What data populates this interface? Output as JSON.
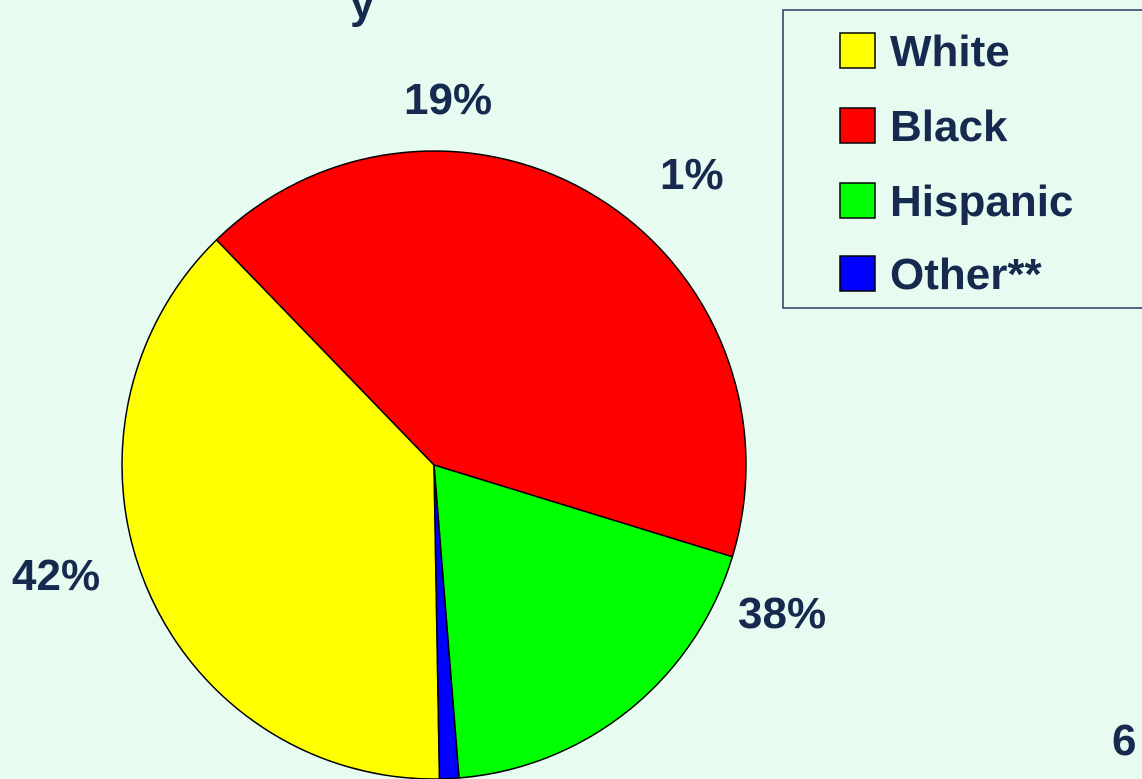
{
  "chart_data": {
    "type": "pie",
    "categories": [
      "White",
      "Black",
      "Hispanic",
      "Other**"
    ],
    "values": [
      38,
      42,
      19,
      1
    ],
    "labels": [
      "38%",
      "42%",
      "19%",
      "1%"
    ],
    "colors": [
      "#ffff00",
      "#ff0000",
      "#00ff00",
      "#0000ff"
    ],
    "legend": {
      "placement": "top-right",
      "entries": [
        "White",
        "Black",
        "Hispanic",
        "Other**"
      ]
    }
  },
  "background_color": "#e8fbf1",
  "text_color": "#16294e",
  "partial_text": {
    "top": "y",
    "right": "6"
  }
}
